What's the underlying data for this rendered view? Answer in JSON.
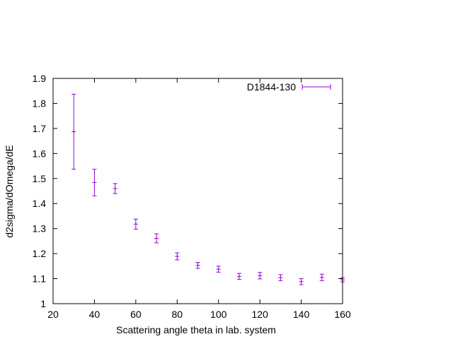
{
  "chart_data": {
    "type": "scatter",
    "title": "",
    "xlabel": "Scattering angle theta in lab. system",
    "ylabel": "d2sigma/dOmega/dE",
    "xlim": [
      20,
      160
    ],
    "ylim": [
      1,
      1.9
    ],
    "xticks": [
      "20",
      "40",
      "60",
      "80",
      "100",
      "120",
      "140",
      "160"
    ],
    "yticks": [
      "1",
      "1.1",
      "1.2",
      "1.3",
      "1.4",
      "1.5",
      "1.6",
      "1.7",
      "1.8",
      "1.9"
    ],
    "grid": false,
    "legend": "top-right",
    "series": [
      {
        "name": "D1844-130",
        "color": "#9400d3",
        "marker": "errorbar",
        "x": [
          30,
          40,
          50,
          60,
          70,
          80,
          90,
          100,
          110,
          120,
          130,
          140,
          150,
          160
        ],
        "y": [
          1.687,
          1.484,
          1.46,
          1.318,
          1.261,
          1.189,
          1.153,
          1.138,
          1.109,
          1.112,
          1.104,
          1.088,
          1.105,
          1.095
        ],
        "err": [
          0.15,
          0.053,
          0.02,
          0.02,
          0.018,
          0.014,
          0.012,
          0.012,
          0.012,
          0.013,
          0.012,
          0.012,
          0.013,
          0.008
        ]
      }
    ]
  }
}
